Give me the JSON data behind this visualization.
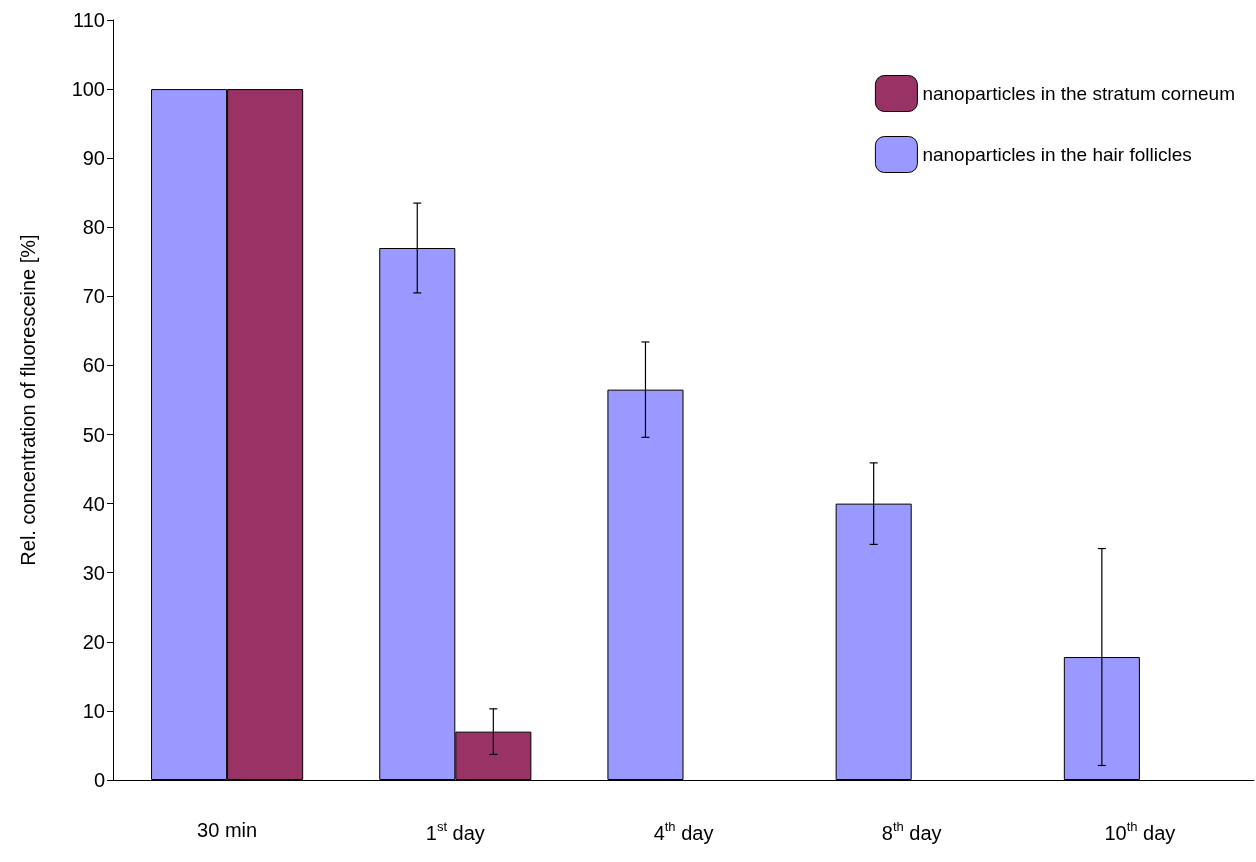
{
  "chart_data": {
    "type": "bar",
    "ylabel": "Rel. concentration of fluoresceine [%]",
    "categories": [
      "30 min",
      "1$^{st}$ day",
      "4$^{th}$ day",
      "8$^{th}$ day",
      "10$^{th}$ day"
    ],
    "series": [
      {
        "name": "nanoparticles in the hair follicles",
        "color": "#9999ff",
        "values": [
          100,
          77,
          56.5,
          40,
          17.8
        ],
        "errors": [
          null,
          6.5,
          6.9,
          5.9,
          15.7
        ]
      },
      {
        "name": "nanoparticles in the stratum corneum",
        "color": "#993366",
        "values": [
          100,
          7,
          null,
          null,
          null
        ],
        "errors": [
          null,
          3.3,
          null,
          null,
          null
        ]
      }
    ],
    "ylim": [
      0,
      110
    ],
    "yticks": [
      0,
      10,
      20,
      30,
      40,
      50,
      60,
      70,
      80,
      90,
      100,
      110
    ],
    "grid": false,
    "legend": "top right"
  }
}
